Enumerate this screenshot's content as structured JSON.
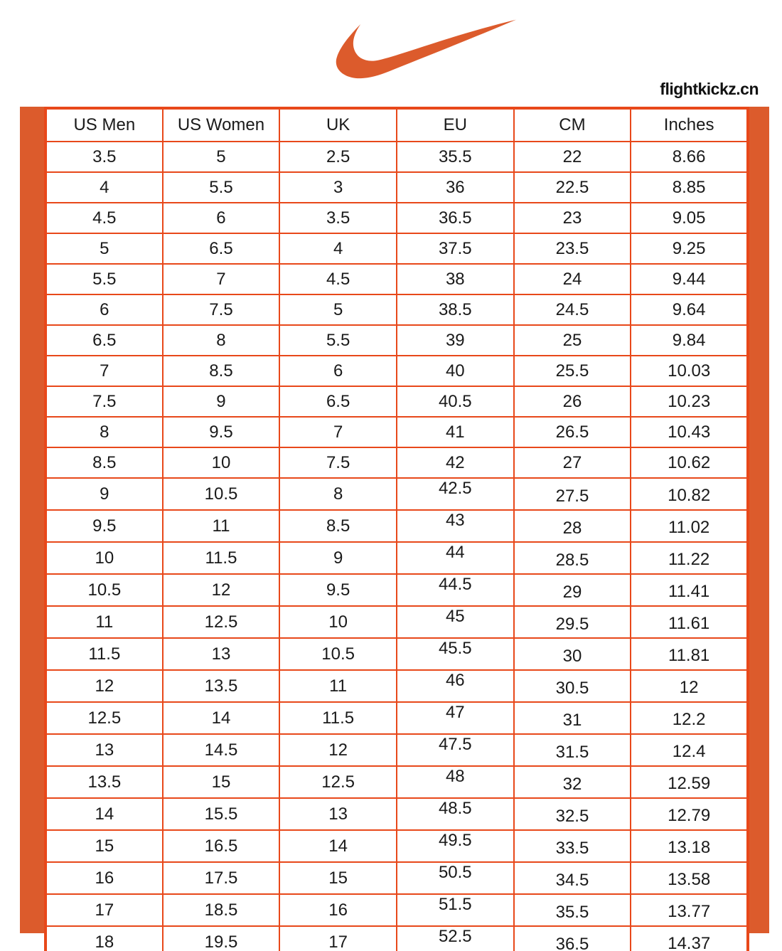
{
  "brand": {
    "logo": "nike-swoosh",
    "website": "flightkickz.cn"
  },
  "colors": {
    "accent_orange": "#DC5B2C",
    "border_orange": "#E8481A",
    "text": "#1A1A1A",
    "background": "#FFFFFF"
  },
  "chart_data": {
    "type": "table",
    "headers": [
      "US Men",
      "US Women",
      "UK",
      "EU",
      "CM",
      "Inches"
    ],
    "rows": [
      [
        "3.5",
        "5",
        "2.5",
        "35.5",
        "22",
        "8.66"
      ],
      [
        "4",
        "5.5",
        "3",
        "36",
        "22.5",
        "8.85"
      ],
      [
        "4.5",
        "6",
        "3.5",
        "36.5",
        "23",
        "9.05"
      ],
      [
        "5",
        "6.5",
        "4",
        "37.5",
        "23.5",
        "9.25"
      ],
      [
        "5.5",
        "7",
        "4.5",
        "38",
        "24",
        "9.44"
      ],
      [
        "6",
        "7.5",
        "5",
        "38.5",
        "24.5",
        "9.64"
      ],
      [
        "6.5",
        "8",
        "5.5",
        "39",
        "25",
        "9.84"
      ],
      [
        "7",
        "8.5",
        "6",
        "40",
        "25.5",
        "10.03"
      ],
      [
        "7.5",
        "9",
        "6.5",
        "40.5",
        "26",
        "10.23"
      ],
      [
        "8",
        "9.5",
        "7",
        "41",
        "26.5",
        "10.43"
      ],
      [
        "8.5",
        "10",
        "7.5",
        "42",
        "27",
        "10.62"
      ],
      [
        "9",
        "10.5",
        "8",
        "42.5",
        "27.5",
        "10.82"
      ],
      [
        "9.5",
        "11",
        "8.5",
        "43",
        "28",
        "11.02"
      ],
      [
        "10",
        "11.5",
        "9",
        "44",
        "28.5",
        "11.22"
      ],
      [
        "10.5",
        "12",
        "9.5",
        "44.5",
        "29",
        "11.41"
      ],
      [
        "11",
        "12.5",
        "10",
        "45",
        "29.5",
        "11.61"
      ],
      [
        "11.5",
        "13",
        "10.5",
        "45.5",
        "30",
        "11.81"
      ],
      [
        "12",
        "13.5",
        "11",
        "46",
        "30.5",
        "12"
      ],
      [
        "12.5",
        "14",
        "11.5",
        "47",
        "31",
        "12.2"
      ],
      [
        "13",
        "14.5",
        "12",
        "47.5",
        "31.5",
        "12.4"
      ],
      [
        "13.5",
        "15",
        "12.5",
        "48",
        "32",
        "12.59"
      ],
      [
        "14",
        "15.5",
        "13",
        "48.5",
        "32.5",
        "12.79"
      ],
      [
        "15",
        "16.5",
        "14",
        "49.5",
        "33.5",
        "13.18"
      ],
      [
        "16",
        "17.5",
        "15",
        "50.5",
        "34.5",
        "13.58"
      ],
      [
        "17",
        "18.5",
        "16",
        "51.5",
        "35.5",
        "13.77"
      ],
      [
        "18",
        "19.5",
        "17",
        "52.5",
        "36.5",
        "14.37"
      ]
    ]
  }
}
